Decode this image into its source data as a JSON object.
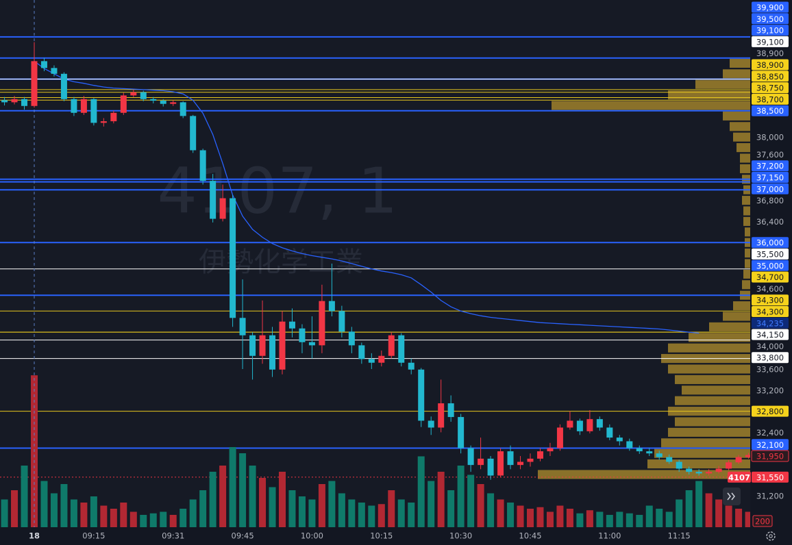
{
  "chart_data": {
    "type": "candlestick",
    "watermark": {
      "symbol": "4107, 1",
      "name": "伊勢化学工業"
    },
    "categories": [
      null,
      null,
      null,
      "18",
      null,
      null,
      null,
      null,
      null,
      "09:15",
      null,
      null,
      null,
      null,
      null,
      null,
      null,
      "09:31",
      null,
      null,
      null,
      null,
      null,
      null,
      "09:45",
      null,
      null,
      null,
      null,
      null,
      null,
      "10:00",
      null,
      null,
      null,
      null,
      null,
      null,
      "10:15",
      null,
      null,
      null,
      null,
      null,
      null,
      null,
      "10:30",
      null,
      null,
      null,
      null,
      null,
      null,
      "10:45",
      null,
      null,
      null,
      null,
      null,
      null,
      null,
      "11:00",
      null,
      null,
      null,
      null,
      null,
      null,
      "11:15",
      null,
      null,
      null,
      null,
      null,
      null,
      null
    ],
    "open": [
      38700,
      38660,
      38720,
      38590,
      39440,
      39310,
      39200,
      38720,
      38460,
      38720,
      38270,
      38300,
      38460,
      38790,
      38850,
      38720,
      38690,
      38630,
      38660,
      38400,
      37750,
      37170,
      36450,
      36840,
      34570,
      34240,
      33850,
      34240,
      33590,
      34500,
      34370,
      34110,
      34050,
      34890,
      34700,
      34310,
      34050,
      33790,
      33720,
      33850,
      34240,
      33720,
      33590,
      32620,
      32490,
      32950,
      32690,
      32100,
      31780,
      31900,
      31580,
      32040,
      31780,
      31840,
      31900,
      32040,
      32100,
      32490,
      32620,
      32420,
      32650,
      32490,
      32300,
      32230,
      32100,
      32040,
      32000,
      31930,
      31840,
      31710,
      31650,
      31620,
      31650,
      31710,
      31830,
      31930
    ],
    "high": [
      38760,
      38780,
      38760,
      39800,
      39500,
      39360,
      39230,
      38760,
      38780,
      38740,
      38360,
      38500,
      38840,
      38900,
      38880,
      38760,
      38720,
      38700,
      38680,
      38420,
      37780,
      37300,
      37100,
      36900,
      35300,
      34300,
      34900,
      34400,
      34700,
      34750,
      34450,
      34600,
      35200,
      35600,
      34800,
      34400,
      34100,
      33900,
      33950,
      34300,
      34280,
      33800,
      33620,
      32700,
      33400,
      33100,
      32750,
      32150,
      32300,
      31950,
      32100,
      32150,
      31950,
      32000,
      32100,
      32200,
      32550,
      32800,
      32660,
      32820,
      32700,
      32550,
      32350,
      32280,
      32150,
      32100,
      32050,
      31980,
      31880,
      31750,
      31700,
      31700,
      31760,
      31870,
      31970,
      32010
    ],
    "low": [
      38600,
      38620,
      38520,
      38560,
      39250,
      39150,
      38680,
      38400,
      38420,
      38220,
      38200,
      38260,
      38420,
      38760,
      38680,
      38640,
      38580,
      38590,
      38360,
      37700,
      37100,
      36380,
      36400,
      34400,
      33600,
      33400,
      33700,
      33450,
      33500,
      34200,
      33900,
      33800,
      33900,
      34600,
      34200,
      33900,
      33700,
      33600,
      33650,
      33800,
      33650,
      33500,
      32500,
      32350,
      32400,
      32600,
      32000,
      31650,
      31700,
      31500,
      31550,
      31700,
      31700,
      31750,
      31850,
      31950,
      32050,
      32450,
      32350,
      32380,
      32430,
      32250,
      32150,
      32050,
      31990,
      31950,
      31880,
      31800,
      31650,
      31600,
      31580,
      31580,
      31620,
      31680,
      31800,
      31900
    ],
    "close": [
      38660,
      38720,
      38590,
      39440,
      39310,
      39200,
      38720,
      38460,
      38720,
      38270,
      38300,
      38460,
      38790,
      38850,
      38720,
      38690,
      38630,
      38660,
      38400,
      37750,
      37170,
      36450,
      36840,
      34570,
      34240,
      33850,
      34240,
      33590,
      34500,
      34370,
      34110,
      34050,
      34890,
      34700,
      34310,
      34050,
      33790,
      33720,
      33850,
      34240,
      33720,
      33590,
      32620,
      32490,
      32950,
      32690,
      32100,
      31780,
      31900,
      31580,
      32040,
      31780,
      31840,
      31900,
      32040,
      32100,
      32490,
      32620,
      32420,
      32650,
      32490,
      32300,
      32230,
      32100,
      32040,
      32000,
      31930,
      31840,
      31710,
      31650,
      31620,
      31650,
      31710,
      31830,
      31930,
      31970
    ],
    "up_color": "#f23645",
    "down_color": "#22b8cf",
    "ylim": [
      30600,
      40600
    ],
    "price_labels": [
      {
        "value": 39900,
        "label": "39,900",
        "style": "blue"
      },
      {
        "value": 39500,
        "label": "39,500",
        "style": "blue"
      },
      {
        "value": 39100,
        "label": "39,100",
        "style": "blue"
      },
      {
        "value": 39100,
        "label": "39,100",
        "style": "white"
      },
      {
        "value": 38900,
        "label": "38,900",
        "style": "plain"
      },
      {
        "value": 38900,
        "label": "38,900",
        "style": "yellow"
      },
      {
        "value": 38850,
        "label": "38,850",
        "style": "yellow"
      },
      {
        "value": 38750,
        "label": "38,750",
        "style": "yellow"
      },
      {
        "value": 38700,
        "label": "38,700",
        "style": "yellow"
      },
      {
        "value": 38500,
        "label": "38,500",
        "style": "blue"
      },
      {
        "value": 38000,
        "label": "38,000",
        "style": "plain"
      },
      {
        "value": 37600,
        "label": "37,600",
        "style": "plain"
      },
      {
        "value": 37200,
        "label": "37,200",
        "style": "blue"
      },
      {
        "value": 37150,
        "label": "37,150",
        "style": "blue"
      },
      {
        "value": 37000,
        "label": "37,000",
        "style": "blue"
      },
      {
        "value": 36800,
        "label": "36,800",
        "style": "plain"
      },
      {
        "value": 36400,
        "label": "36,400",
        "style": "plain"
      },
      {
        "value": 36000,
        "label": "36,000",
        "style": "blue"
      },
      {
        "value": 35500,
        "label": "35,500",
        "style": "white"
      },
      {
        "value": 35000,
        "label": "35,000",
        "style": "blue"
      },
      {
        "value": 34700,
        "label": "34,700",
        "style": "yellow"
      },
      {
        "value": 34600,
        "label": "34,600",
        "style": "plain"
      },
      {
        "value": 34300,
        "label": "34,300",
        "style": "yellow"
      },
      {
        "value": 34300,
        "label": "34,300",
        "style": "yellow"
      },
      {
        "value": 34235,
        "label": "34,235",
        "style": "navy"
      },
      {
        "value": 34150,
        "label": "34,150",
        "style": "white"
      },
      {
        "value": 34000,
        "label": "34,000",
        "style": "plain"
      },
      {
        "value": 33800,
        "label": "33,800",
        "style": "white"
      },
      {
        "value": 33600,
        "label": "33,600",
        "style": "plain"
      },
      {
        "value": 33200,
        "label": "33,200",
        "style": "plain"
      },
      {
        "value": 32800,
        "label": "32,800",
        "style": "yellow"
      },
      {
        "value": 32400,
        "label": "32,400",
        "style": "plain"
      },
      {
        "value": 32100,
        "label": "32,100",
        "style": "blue"
      },
      {
        "value": 31950,
        "label": "31,950",
        "style": "red-outline"
      },
      {
        "value": 31550,
        "label": "31,550",
        "style": "red",
        "tag": "4107"
      },
      {
        "value": 31200,
        "label": "31,200",
        "style": "plain"
      }
    ],
    "label_styles": {
      "blue": {
        "bg": "#2962ff",
        "fg": "#ffffff",
        "line": "#2962ff"
      },
      "white": {
        "bg": "#ffffff",
        "fg": "#131722",
        "line": "#ffffff"
      },
      "yellow": {
        "bg": "#f5d21c",
        "fg": "#131722",
        "line": "#e8c81e"
      },
      "plain": {
        "bg": null,
        "fg": "#b2b5be",
        "line": null
      },
      "navy": {
        "bg": "#0d2a78",
        "fg": "#3f7bff",
        "line": null
      },
      "red": {
        "bg": "#f23645",
        "fg": "#ffffff",
        "line": "#f23645"
      },
      "red-outline": {
        "bg": "#2a1a20",
        "fg": "#f23645",
        "line": null
      }
    },
    "vwap": {
      "color": "#2962ff",
      "values": [
        null,
        null,
        null,
        39440,
        39300,
        39200,
        39100,
        39050,
        39020,
        38980,
        38950,
        38930,
        38920,
        38910,
        38900,
        38890,
        38880,
        38860,
        38820,
        38700,
        38450,
        38050,
        37500,
        36900,
        36500,
        36250,
        36100,
        35980,
        35900,
        35840,
        35790,
        35750,
        35720,
        35690,
        35650,
        35600,
        35550,
        35500,
        35460,
        35430,
        35390,
        35330,
        35200,
        35060,
        34900,
        34780,
        34700,
        34650,
        34610,
        34580,
        34560,
        34540,
        34520,
        34500,
        34480,
        34470,
        34460,
        34450,
        34440,
        34430,
        34420,
        34410,
        34400,
        34390,
        34380,
        34370,
        34360,
        34340,
        34320,
        34300,
        34280,
        null,
        null,
        null,
        null,
        null
      ]
    },
    "volume": {
      "values": [
        900,
        1200,
        2000,
        4930,
        1500,
        1100,
        1400,
        900,
        800,
        1000,
        700,
        600,
        800,
        500,
        400,
        450,
        500,
        400,
        600,
        900,
        1200,
        1800,
        2000,
        2600,
        2400,
        2000,
        1600,
        1300,
        1800,
        1200,
        1000,
        900,
        1400,
        1500,
        1100,
        900,
        800,
        700,
        750,
        1200,
        900,
        800,
        2300,
        1500,
        1800,
        1200,
        2000,
        1700,
        1400,
        1100,
        900,
        800,
        700,
        600,
        650,
        500,
        700,
        600,
        450,
        550,
        500,
        400,
        500,
        450,
        400,
        700,
        600,
        500,
        900,
        1200,
        1500,
        1100,
        900,
        700,
        600,
        500
      ],
      "ylim": [
        0,
        17000
      ],
      "yticks": [
        200
      ],
      "up_color": "#b22833",
      "down_color": "#0f7a6a"
    },
    "volume_profile": {
      "color": "#a7872c",
      "xlim": [
        0,
        330
      ],
      "prices": [
        31600,
        31800,
        32000,
        32200,
        32400,
        32600,
        32800,
        33000,
        33200,
        33400,
        33600,
        33800,
        34000,
        34200,
        34400,
        34600,
        34800,
        35000,
        35200,
        35400,
        35600,
        35800,
        36000,
        36200,
        36400,
        36600,
        36800,
        37000,
        37200,
        37400,
        37600,
        37800,
        38000,
        38200,
        38400,
        38600,
        38800,
        39000,
        39200,
        39400
      ],
      "values": [
        310,
        150,
        140,
        130,
        120,
        110,
        120,
        110,
        100,
        110,
        120,
        130,
        120,
        90,
        60,
        40,
        25,
        15,
        12,
        10,
        8,
        8,
        8,
        8,
        10,
        10,
        12,
        10,
        12,
        15,
        15,
        20,
        25,
        30,
        40,
        290,
        120,
        80,
        40,
        30
      ]
    }
  }
}
